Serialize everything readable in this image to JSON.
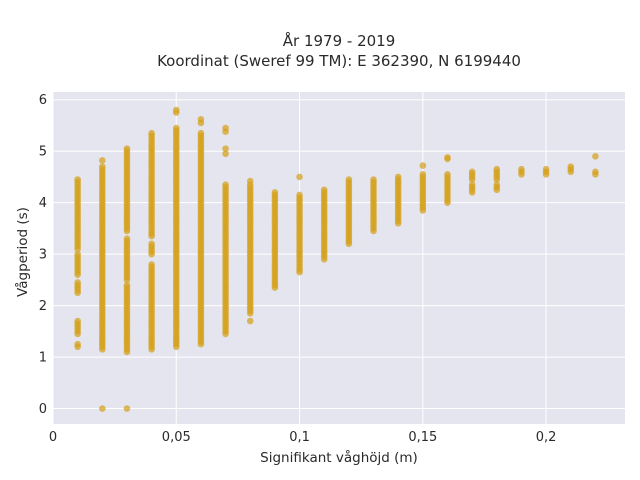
{
  "chart_data": {
    "type": "scatter",
    "title_line1": "År 1979 - 2019",
    "title_line2": "Koordinat (Sweref 99 TM): E 362390, N 6199440",
    "xlabel": "Signifikant våghöjd (m)",
    "ylabel": "Vågperiod (s)",
    "xlim": [
      0,
      0.232
    ],
    "ylim": [
      -0.3,
      6.15
    ],
    "xticks": [
      {
        "value": 0,
        "label": "0"
      },
      {
        "value": 0.05,
        "label": "0,05"
      },
      {
        "value": 0.1,
        "label": "0,1"
      },
      {
        "value": 0.15,
        "label": "0,15"
      },
      {
        "value": 0.2,
        "label": "0,2"
      }
    ],
    "yticks": [
      {
        "value": 0,
        "label": "0"
      },
      {
        "value": 1,
        "label": "1"
      },
      {
        "value": 2,
        "label": "2"
      },
      {
        "value": 3,
        "label": "3"
      },
      {
        "value": 4,
        "label": "4"
      },
      {
        "value": 5,
        "label": "5"
      },
      {
        "value": 6,
        "label": "6"
      }
    ],
    "grid": true,
    "colors": {
      "background": "#e5e5ef",
      "grid": "#ffffff",
      "marker": "#d4a017"
    },
    "columns": [
      {
        "x": 0.01,
        "ranges": [
          [
            1.2,
            1.25
          ],
          [
            1.45,
            1.7
          ],
          [
            2.25,
            2.45
          ],
          [
            2.6,
            3.0
          ],
          [
            3.1,
            4.45
          ]
        ]
      },
      {
        "x": 0.02,
        "ranges": [
          [
            1.15,
            4.7
          ]
        ],
        "points": [
          0,
          4.82
        ]
      },
      {
        "x": 0.03,
        "ranges": [
          [
            1.1,
            2.4
          ],
          [
            2.5,
            3.3
          ],
          [
            3.45,
            5.05
          ]
        ],
        "points": [
          0
        ]
      },
      {
        "x": 0.04,
        "ranges": [
          [
            1.15,
            2.8
          ],
          [
            3.0,
            3.2
          ],
          [
            3.35,
            5.35
          ]
        ]
      },
      {
        "x": 0.05,
        "ranges": [
          [
            1.2,
            5.45
          ]
        ],
        "points": [
          5.75,
          5.8
        ]
      },
      {
        "x": 0.06,
        "ranges": [
          [
            1.25,
            5.35
          ]
        ],
        "points": [
          5.55,
          5.62
        ]
      },
      {
        "x": 0.07,
        "ranges": [
          [
            1.45,
            4.35
          ]
        ],
        "points": [
          4.95,
          5.05,
          5.38,
          5.45
        ]
      },
      {
        "x": 0.08,
        "ranges": [
          [
            1.85,
            4.35
          ]
        ],
        "points": [
          1.7,
          4.42
        ]
      },
      {
        "x": 0.09,
        "ranges": [
          [
            2.35,
            4.2
          ]
        ]
      },
      {
        "x": 0.1,
        "ranges": [
          [
            2.65,
            4.15
          ]
        ],
        "points": [
          4.5
        ]
      },
      {
        "x": 0.11,
        "ranges": [
          [
            2.9,
            4.25
          ]
        ]
      },
      {
        "x": 0.12,
        "ranges": [
          [
            3.2,
            4.45
          ]
        ]
      },
      {
        "x": 0.13,
        "ranges": [
          [
            3.45,
            4.45
          ]
        ]
      },
      {
        "x": 0.14,
        "ranges": [
          [
            3.6,
            4.5
          ]
        ]
      },
      {
        "x": 0.15,
        "ranges": [
          [
            3.85,
            4.55
          ]
        ],
        "points": [
          4.72
        ]
      },
      {
        "x": 0.16,
        "ranges": [
          [
            4.0,
            4.55
          ]
        ],
        "points": [
          4.85,
          4.88
        ]
      },
      {
        "x": 0.17,
        "ranges": [
          [
            4.2,
            4.35
          ],
          [
            4.45,
            4.6
          ]
        ]
      },
      {
        "x": 0.18,
        "ranges": [
          [
            4.25,
            4.35
          ],
          [
            4.45,
            4.65
          ]
        ]
      },
      {
        "x": 0.19,
        "ranges": [
          [
            4.55,
            4.65
          ]
        ]
      },
      {
        "x": 0.2,
        "ranges": [
          [
            4.55,
            4.65
          ]
        ]
      },
      {
        "x": 0.21,
        "ranges": [
          [
            4.6,
            4.72
          ]
        ]
      },
      {
        "x": 0.22,
        "ranges": [
          [
            4.55,
            4.62
          ]
        ],
        "points": [
          4.9
        ]
      }
    ]
  }
}
